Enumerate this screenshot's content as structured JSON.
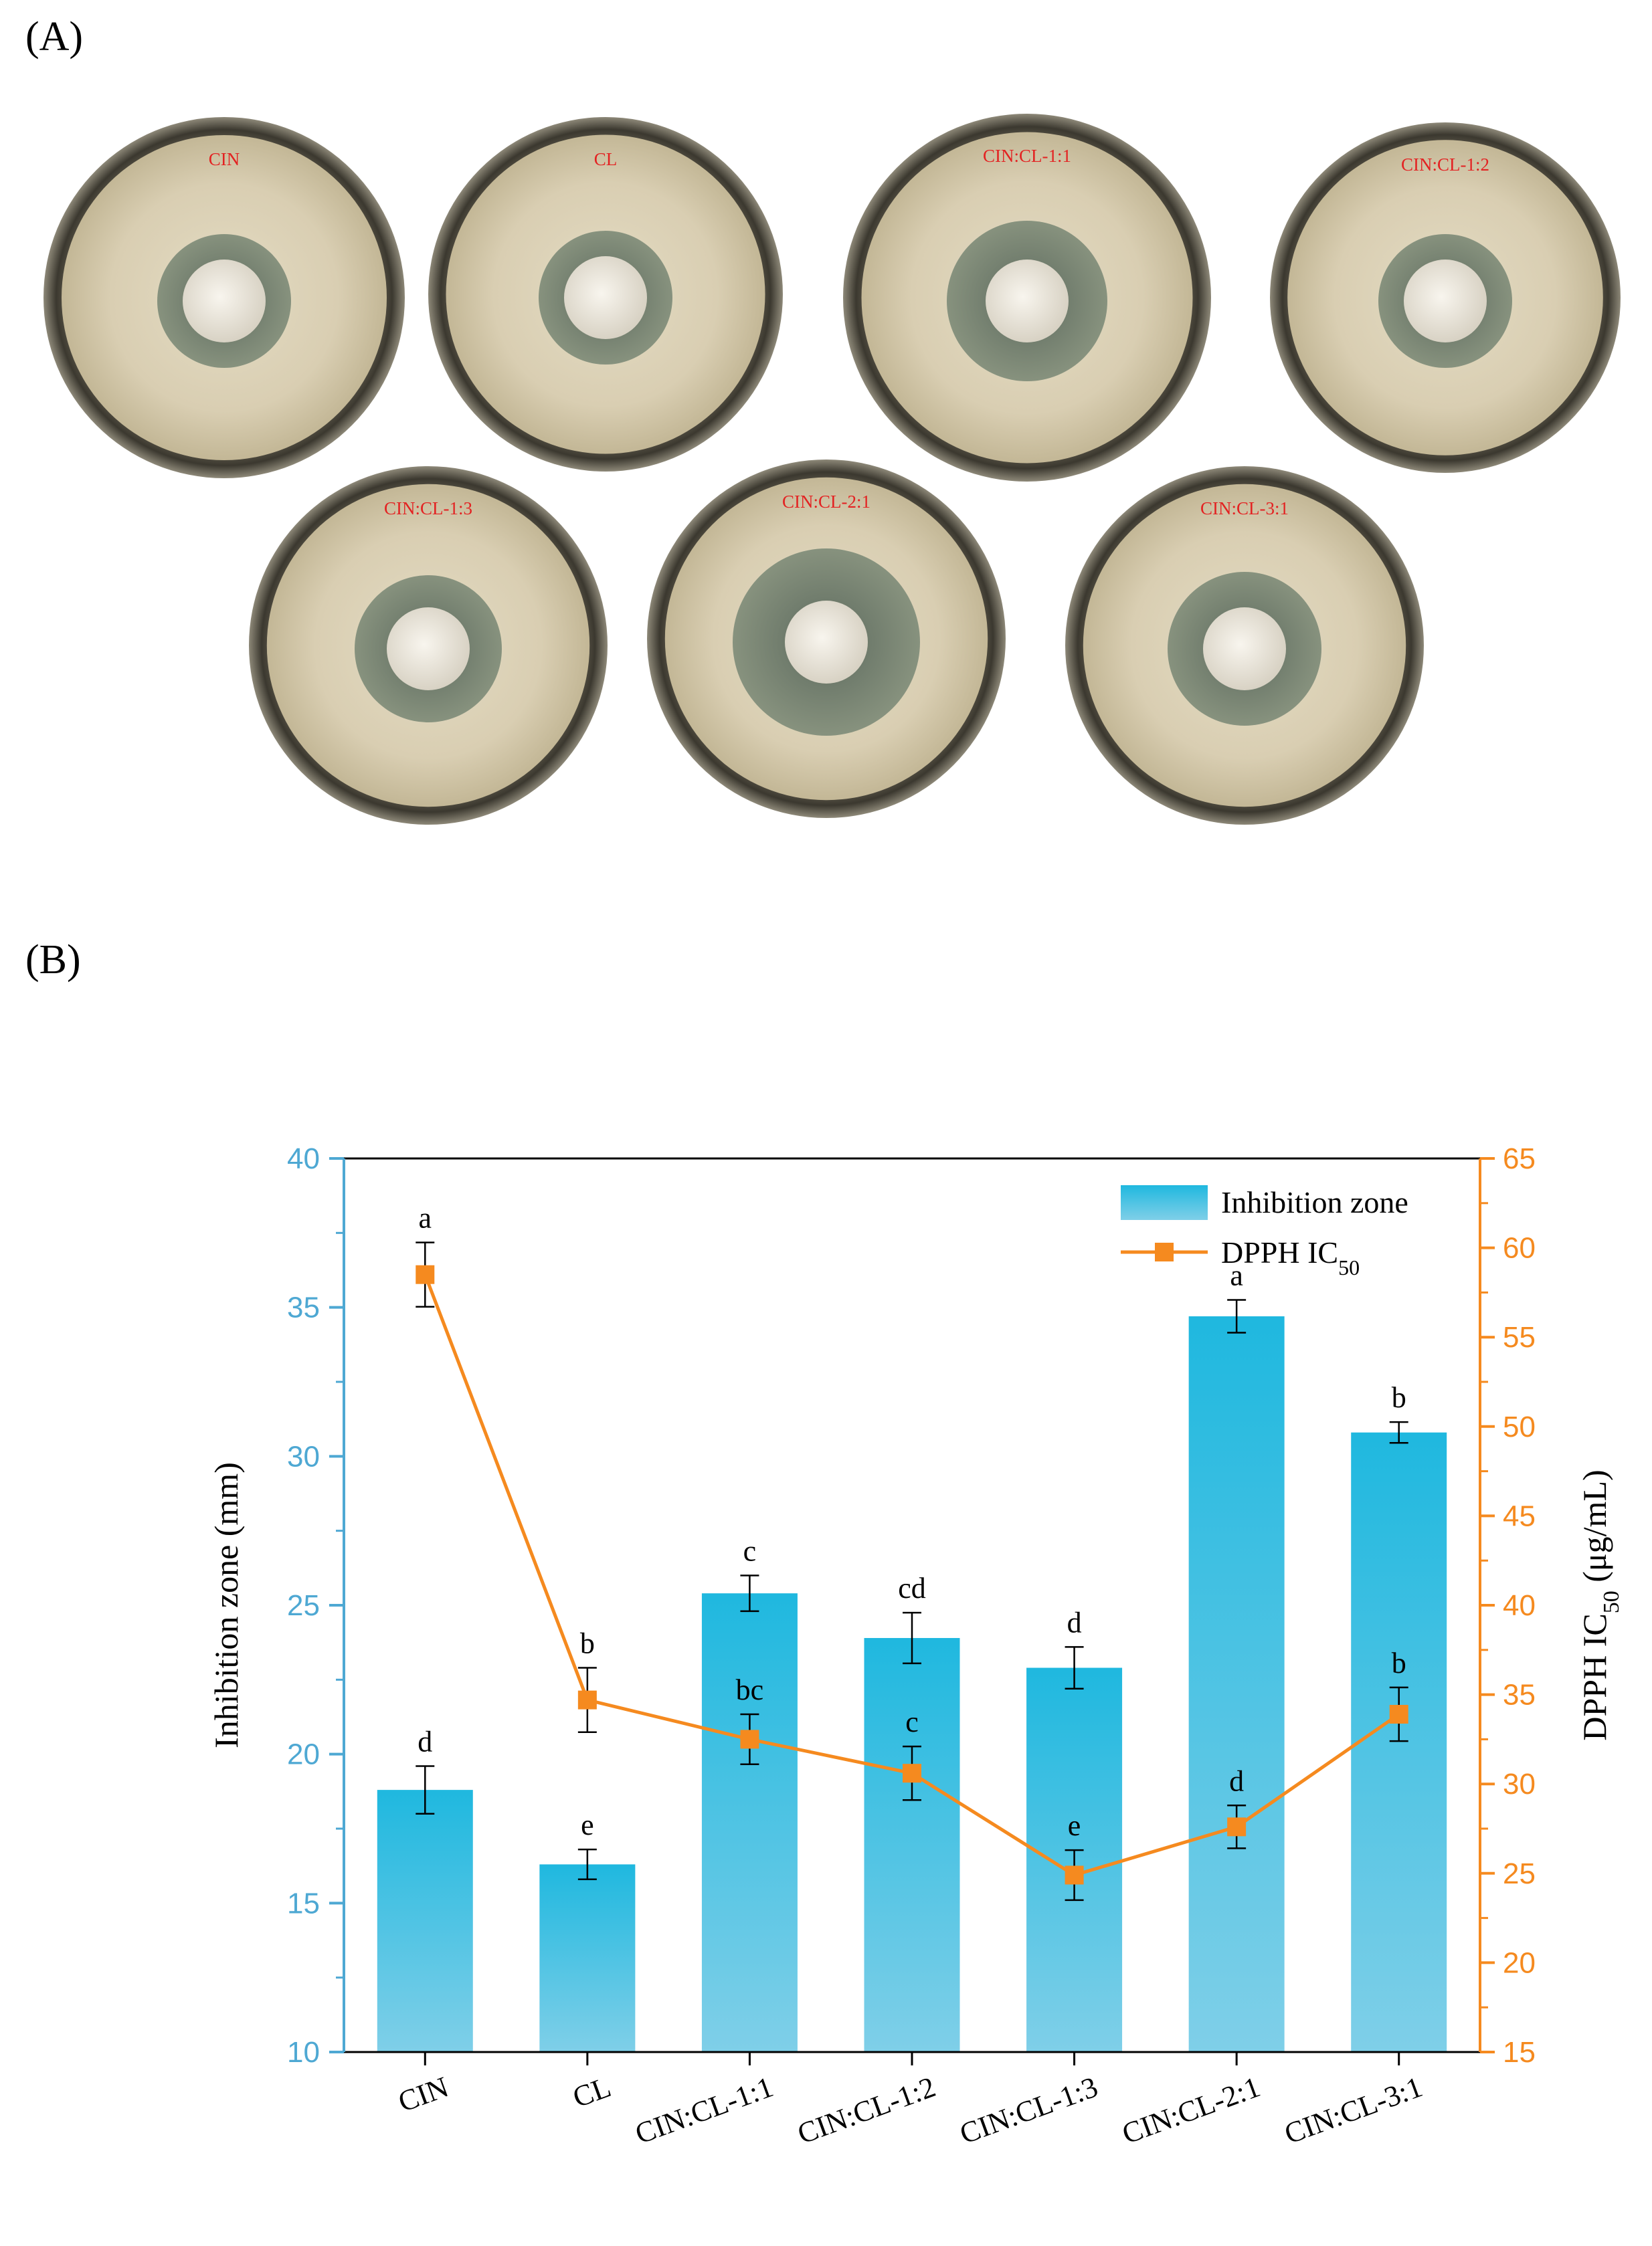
{
  "panels": {
    "a_label": "(A)",
    "b_label": "(B)"
  },
  "plates": [
    {
      "label": "CIN"
    },
    {
      "label": "CL"
    },
    {
      "label": "CIN:CL-1:1"
    },
    {
      "label": "CIN:CL-1:2"
    },
    {
      "label": "CIN:CL-1:3"
    },
    {
      "label": "CIN:CL-2:1"
    },
    {
      "label": "CIN:CL-3:1"
    }
  ],
  "chart_data": {
    "type": "bar",
    "categories": [
      "CIN",
      "CL",
      "CIN:CL-1:1",
      "CIN:CL-1:2",
      "CIN:CL-1:3",
      "CIN:CL-2:1",
      "CIN:CL-3:1"
    ],
    "ylabel": "Inhibition zone (mm)",
    "y2label": {
      "prefix": "DPPH  IC",
      "sub": "50",
      "suffix": " (μg/mL)"
    },
    "ylim": [
      10,
      40
    ],
    "yticks": [
      10,
      15,
      20,
      25,
      30,
      35,
      40
    ],
    "y2lim": [
      15,
      65
    ],
    "y2ticks": [
      15,
      20,
      25,
      30,
      35,
      40,
      45,
      50,
      55,
      60,
      65
    ],
    "legend_position": "top-right",
    "series": [
      {
        "name": "Inhibition zone",
        "type": "bar",
        "axis": "left",
        "color": "#1fb8df",
        "values": [
          18.8,
          16.3,
          25.4,
          23.9,
          22.9,
          34.7,
          30.8
        ],
        "errors": [
          0.8,
          0.5,
          0.6,
          0.85,
          0.7,
          0.55,
          0.35
        ],
        "letters": [
          "d",
          "e",
          "c",
          "cd",
          "d",
          "a",
          "b"
        ]
      },
      {
        "name": {
          "prefix": "DPPH  IC",
          "sub": "50"
        },
        "type": "line",
        "axis": "right",
        "color": "#f58a1f",
        "values": [
          58.5,
          34.7,
          32.5,
          30.6,
          24.9,
          27.6,
          33.9
        ],
        "errors": [
          1.8,
          1.8,
          1.4,
          1.5,
          1.4,
          1.2,
          1.5
        ],
        "letters": [
          "a",
          "b",
          "bc",
          "c",
          "e",
          "d",
          "b"
        ]
      }
    ]
  }
}
